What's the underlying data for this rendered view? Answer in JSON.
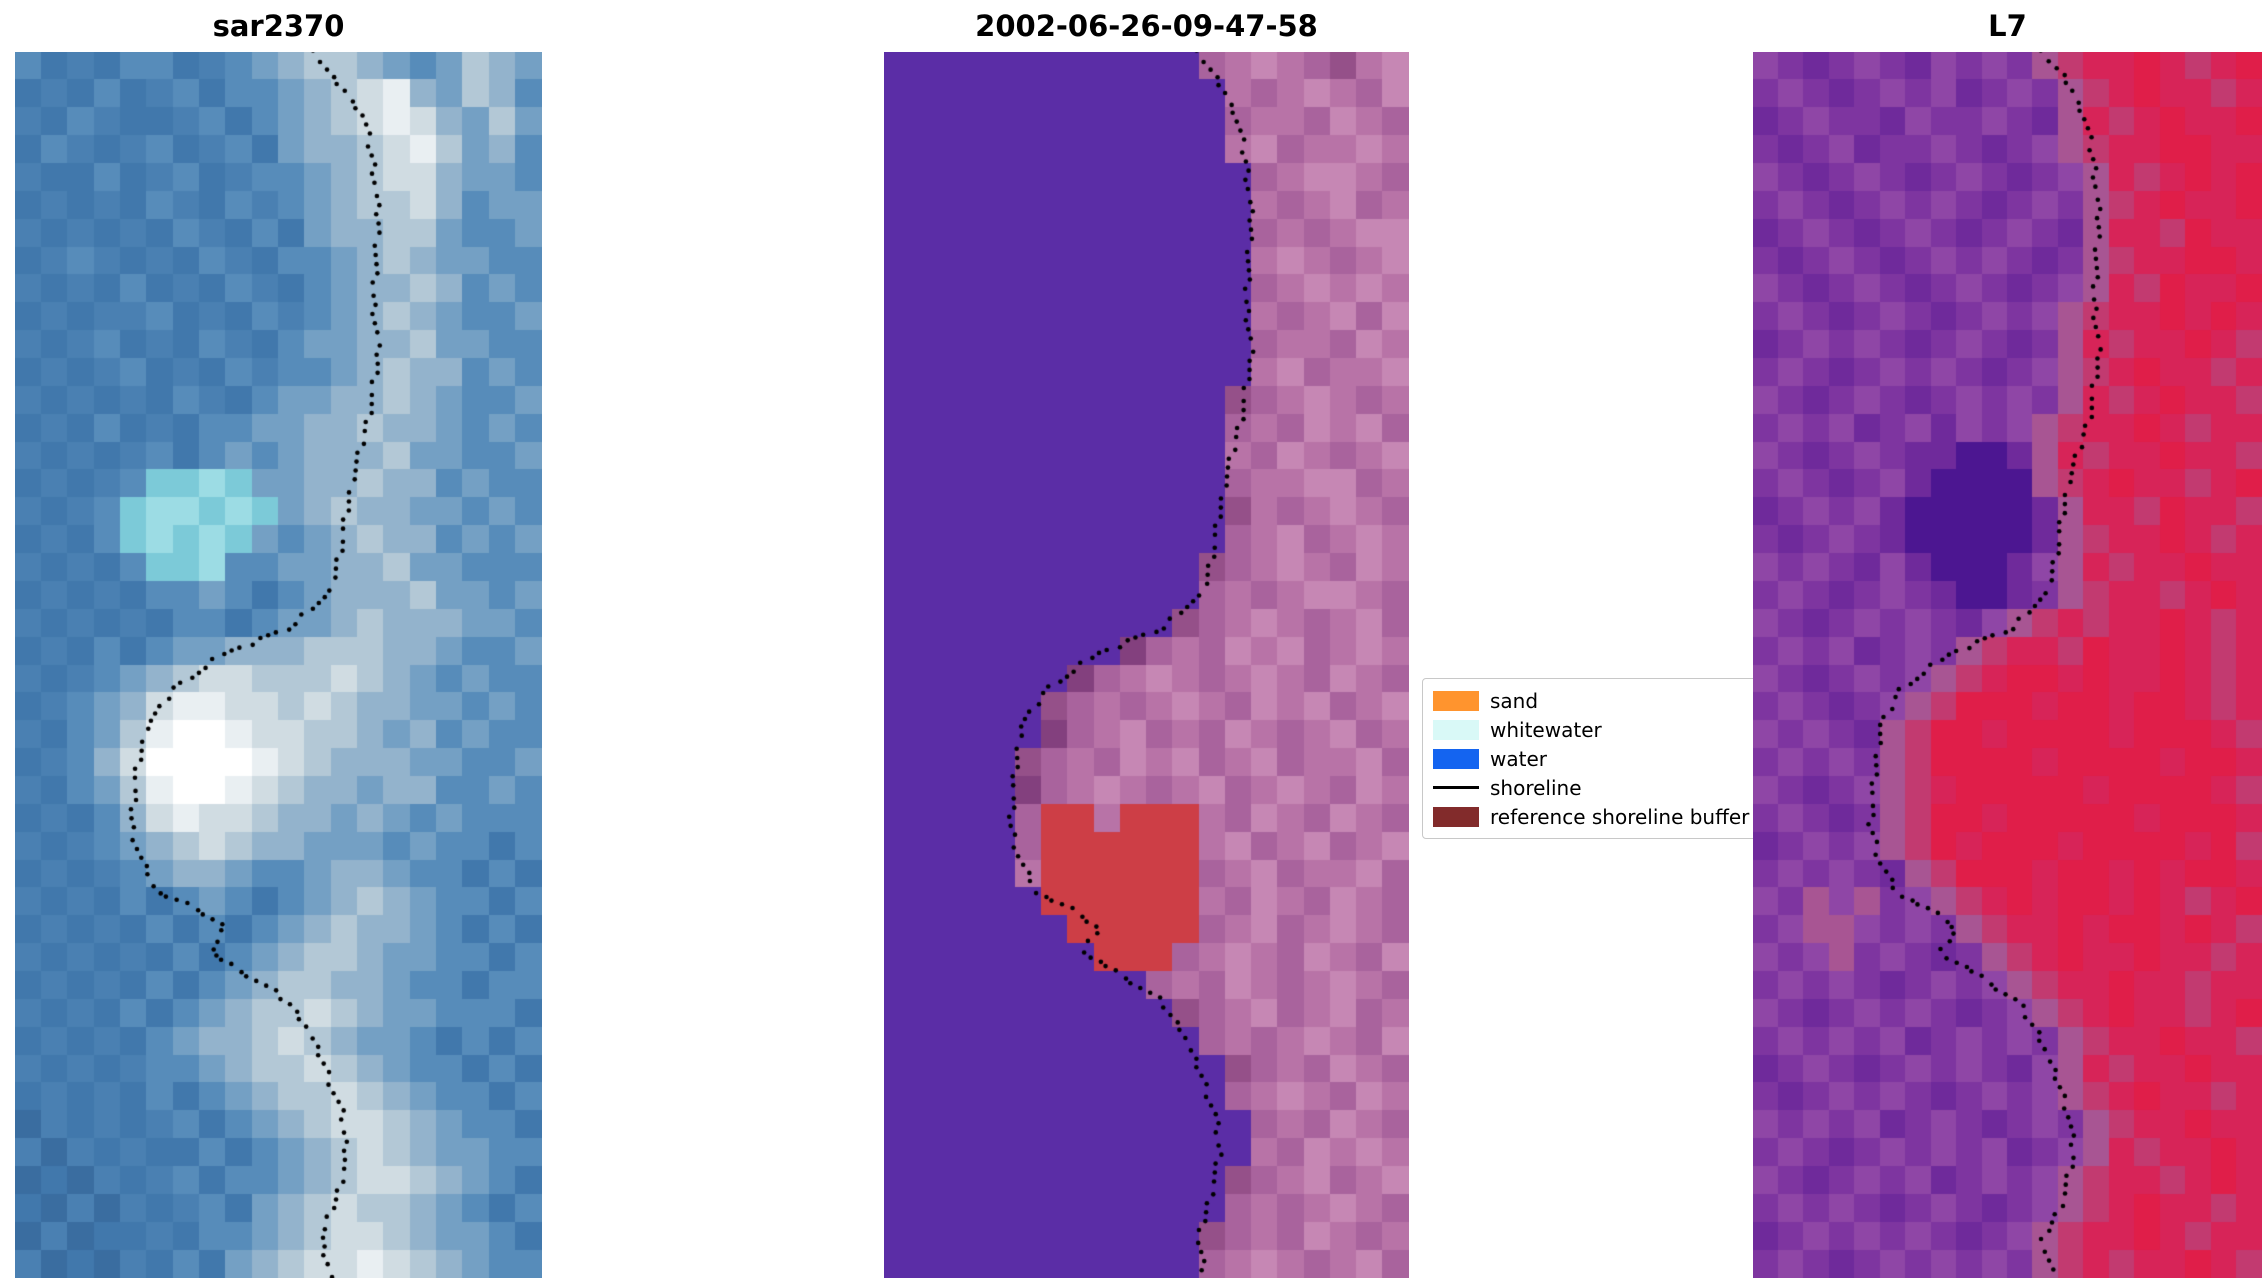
{
  "figure": {
    "background": "#ffffff",
    "panels": [
      {
        "title": "sar2370",
        "cols": 20,
        "rows": 44,
        "palette": {
          "a": "#4a80b2",
          "b": "#4178ac",
          "c": "#578cba",
          "d": "#74a0c4",
          "e": "#93b3cc",
          "f": "#b3c8d6",
          "g": "#d0dce2",
          "h": "#e9eff2",
          "i": "#ffffff",
          "j": "#7ccad8",
          "k": "#9cdce4",
          "m": "#3a6da0"
        },
        "grid": [
          "cbabccbacdeffedcdfed",
          "babcbacbccdefghedfec",
          "abcabbacbcdefghgedfd",
          "bcabacbacbdeefghfdec",
          "abbcbacbaccdefggeddc",
          "bababcabcacdeffgecdd",
          "abababcabcbdeeffdccd",
          "bacababcabccdefeddcc",
          "ababcbabcabcdeefecdc",
          "babaacbabcacdefedccd",
          "abacbabcabcddeefddcc",
          "babacbabcaccdefeecdc",
          "abababcabcddeefedccd",
          "babcbabccddeefeedcdc",
          "ababacbcdcdeeefddccd",
          "babacjjkjddeefeecdcc",
          "abacjkkjkjdefeeddcdc",
          "babcjkjkjdcdefeecdcd",
          "ababcjjkccddeefddccc",
          "bababccdcbcdeeefddcd",
          "abababccbcddefeeeddc",
          "babcbcddeeefffeedccd",
          "abacdefggfffgfedcdcc",
          "bacdeghhggfgfeeddcdc",
          "abcdfhiihggffedecdcc",
          "bacegiiiihgfeeeddccd",
          "abcdfhiihgfeedeeccdc",
          "babceghggfeededcdccc",
          "abacdefgfeedddcdccbc",
          "babacdeedccdeedccbcb",
          "ababcbcdcbcdefedccbc",
          "bababcbcbcdefeedcbcb",
          "abababcbcdeffeddccbc",
          "bababcbcdeffeedccbcc",
          "ababcbcdeffgfeddcccb",
          "bababcdeefgfeddcbcbc",
          "ababaccdeffgfedccbcb",
          "bababcbcdeffgfedccbc",
          "mababacbcdefggfedccb",
          "amababbcbcdefgfeddcc",
          "mbmabacbccdefggfedcb",
          "bmamabacbdefgffedcbc",
          "mambbabccdefggfeddcb",
          "ambmabcbdefgghgfedcc"
        ],
        "shoreline": [
          [
            0.57,
            0.0
          ],
          [
            0.6,
            0.02
          ],
          [
            0.66,
            0.05
          ],
          [
            0.68,
            0.09
          ],
          [
            0.69,
            0.14
          ],
          [
            0.68,
            0.2
          ],
          [
            0.69,
            0.25
          ],
          [
            0.67,
            0.3
          ],
          [
            0.64,
            0.35
          ],
          [
            0.62,
            0.4
          ],
          [
            0.6,
            0.44
          ],
          [
            0.52,
            0.47
          ],
          [
            0.4,
            0.49
          ],
          [
            0.3,
            0.52
          ],
          [
            0.25,
            0.55
          ],
          [
            0.23,
            0.59
          ],
          [
            0.22,
            0.63
          ],
          [
            0.24,
            0.66
          ],
          [
            0.27,
            0.685
          ],
          [
            0.35,
            0.7
          ],
          [
            0.4,
            0.715
          ],
          [
            0.37,
            0.735
          ],
          [
            0.45,
            0.755
          ],
          [
            0.52,
            0.775
          ],
          [
            0.56,
            0.8
          ],
          [
            0.59,
            0.83
          ],
          [
            0.62,
            0.865
          ],
          [
            0.63,
            0.9
          ],
          [
            0.61,
            0.935
          ],
          [
            0.58,
            0.97
          ],
          [
            0.6,
            1.0
          ]
        ]
      },
      {
        "title": "2002-06-26-09-47-58",
        "cols": 20,
        "rows": 44,
        "palette": {
          "p": "#5b2da6",
          "q": "#a9639d",
          "r": "#b873a7",
          "s": "#c687b4",
          "t": "#955089",
          "u": "#cd3e46",
          "v": "#83407e"
        },
        "grid": [
          "ppppppppppppqrsrqtrs",
          "ppppppppppppprqrsrqs",
          "pppppppppppppqrrqsrq",
          "ppppppppppppprsqrrsr",
          "ppppppppppppppqrssrq",
          "pppppppppppppprqrsqr",
          "ppppppppppppppqrqrss",
          "pppppppppppppprsrqrs",
          "ppppppppppppppqrsrsr",
          "pppppppppppppprqrsqs",
          "ppppppppppppppqrrqsr",
          "pppppppppppppprsqrrs",
          "ppppppppppppptqrsrqr",
          "pppppppppppppqrqsrsq",
          "ppppppppppppprqsrqrs",
          "pppppppppppppqrrssqr",
          "ppppppppppppptrqrsrq",
          "pppppppppppppqrsqrsr",
          "pppppppppppptqrsrqsr",
          "ppppppppppppqrqrssrq",
          "ppppppppppptqrsrqrsq",
          "pppppppppvqrqsrsqrsr",
          "pppppppvqrsrqrsrqsrq",
          "pppppptqrqrsrqsrsqrs",
          "ppppppvqrsqrqsrqrsqr",
          "ppppptqrqsrsqrsqrrsq",
          "pppppvqrsrqrsqrsrqsr",
          "pppppquuruuurqsrqsrq",
          "pppppquuuuuursqrsqrs",
          "pppppruuuuuuqrsqrrsq",
          "ppppppuuuuuurqsrqsrq",
          "pppppppuuuuuqrsqrsrq",
          "ppppppppuuuqrsrqsrqs",
          "ppppppppppqrqsrqrsrq",
          "ppppppppppptqrsqrsqr",
          "ppppppppppppqrqrsrqs",
          "ppppppppppppptqrqsrq",
          "pppppppppppppqrsrqsr",
          "ppppppppppppppqrqsrq",
          "pppppppppppppprqsrsr",
          "ppppppppppppptqrsqrs",
          "pppppppppppppqrqrsrq",
          "pppppppppppptqrqsrqr",
          "ppppppppppppqrsrqrsq"
        ],
        "shoreline": [
          [
            0.6,
            0.0
          ],
          [
            0.63,
            0.02
          ],
          [
            0.67,
            0.05
          ],
          [
            0.69,
            0.09
          ],
          [
            0.7,
            0.14
          ],
          [
            0.69,
            0.2
          ],
          [
            0.7,
            0.25
          ],
          [
            0.68,
            0.3
          ],
          [
            0.65,
            0.35
          ],
          [
            0.63,
            0.4
          ],
          [
            0.61,
            0.44
          ],
          [
            0.53,
            0.47
          ],
          [
            0.41,
            0.49
          ],
          [
            0.31,
            0.52
          ],
          [
            0.26,
            0.55
          ],
          [
            0.25,
            0.59
          ],
          [
            0.24,
            0.63
          ],
          [
            0.26,
            0.66
          ],
          [
            0.29,
            0.685
          ],
          [
            0.36,
            0.7
          ],
          [
            0.41,
            0.715
          ],
          [
            0.38,
            0.735
          ],
          [
            0.46,
            0.755
          ],
          [
            0.53,
            0.775
          ],
          [
            0.57,
            0.8
          ],
          [
            0.6,
            0.83
          ],
          [
            0.63,
            0.865
          ],
          [
            0.64,
            0.9
          ],
          [
            0.62,
            0.935
          ],
          [
            0.6,
            0.97
          ],
          [
            0.61,
            1.0
          ]
        ]
      },
      {
        "title": "L7",
        "cols": 20,
        "rows": 44,
        "palette": {
          "P": "#7e35a0",
          "Q": "#8f46a6",
          "R": "#6f2a9b",
          "S": "#4c1691",
          "T": "#a85593",
          "U": "#c23a70",
          "V": "#d72458",
          "W": "#e01e49"
        },
        "grid": [
          "QPRPQPRQPQPTUVVWVUVW",
          "PQPRPQPQRPQPTUVWVVUV",
          "RPQPPRQPPQPRTVUVWVVW",
          "PRPQRPPQPRPQTUVVWWVV",
          "QPRPQPRPQPRPQTVUVWVW",
          "PQPRPQPQPRPQPTUVWVVW",
          "RPQPRPQPRPQPRTVVUWVV",
          "PRPQPRPQPQPRPTUVVWWV",
          "QPRPQPRPQPRPQTVUWVVW",
          "PQPRPQPRPQPQTUVVWVWV",
          "RPQPQPRPQPRPTVUVVWVU",
          "PQPRPQPQPRPQTUVWVVUV",
          "QPRPQPRPQPQPTVUVWVVU",
          "PQPQRPQRQPQTUVVWVUVV",
          "QPRPQPRRSSRTVUVVWVVU",
          "PQPRPQRSSSSTUVWVVUVW",
          "RPQPQRSSSSSRTVVUWVVU",
          "PRPQPRSSSSSRTUVVWVUV",
          "QPQPRQRSSSRQTVUVVWVV",
          "PQPRPQPRSSRPTUVVUVWV",
          "QPRPQPQPRQTUVUVVWVUV",
          "PQPQRPQPTUVVUWVVWVUV",
          "QPRPQPQTUVWWVWVVWVUV",
          "PQPRPQTUWWWVWWVWWVUV",
          "QPQPRTUWWVWWWWVWWWVU",
          "PQPQPTUWWWWVWWWWVWWV",
          "QPRPQTUVWWWWWVWWWWVU",
          "PQPRPTUWWVWWWWWVWWWV",
          "RPQPQTUWVWWWVWWWWVWU",
          "PQPQPRTUWWWVWWVWVWWV",
          "QPTQTPQTUVWVWWVWVUVW",
          "PQTTQPQPTUVVWVWWVWVU",
          "QPQTPQPRPTUVWVVWVVUV",
          "PQPQPRPQPQTUVVWVVUVV",
          "QPRPQPQPRPQTUVWVVUVW",
          "PQPQPQRPQPQPTUVVWVVU",
          "RPQPRPQPQPRQTVUVVWVV",
          "PRPQPQPRPQPQTUVWVVUV",
          "QPQPQRPQPRPQPTUVVWVV",
          "PQPRPQPQPQRPQTVUVVWV",
          "QPRPQPQRPQPQTUVVUVWV",
          "PQPQPRPQPRPQTUVWVVUV",
          "RPQPQPQPRPQTUVVWVUVV",
          "PQPRPQPQPQPTUVUVVWVU"
        ],
        "shoreline": [
          [
            0.57,
            0.0
          ],
          [
            0.61,
            0.02
          ],
          [
            0.65,
            0.05
          ],
          [
            0.67,
            0.09
          ],
          [
            0.68,
            0.14
          ],
          [
            0.67,
            0.2
          ],
          [
            0.68,
            0.25
          ],
          [
            0.66,
            0.3
          ],
          [
            0.62,
            0.35
          ],
          [
            0.6,
            0.4
          ],
          [
            0.58,
            0.44
          ],
          [
            0.51,
            0.47
          ],
          [
            0.39,
            0.49
          ],
          [
            0.29,
            0.52
          ],
          [
            0.25,
            0.55
          ],
          [
            0.24,
            0.59
          ],
          [
            0.23,
            0.63
          ],
          [
            0.25,
            0.66
          ],
          [
            0.28,
            0.685
          ],
          [
            0.35,
            0.7
          ],
          [
            0.4,
            0.715
          ],
          [
            0.37,
            0.735
          ],
          [
            0.45,
            0.755
          ],
          [
            0.52,
            0.775
          ],
          [
            0.56,
            0.8
          ],
          [
            0.59,
            0.83
          ],
          [
            0.62,
            0.865
          ],
          [
            0.63,
            0.9
          ],
          [
            0.61,
            0.935
          ],
          [
            0.57,
            0.97
          ],
          [
            0.59,
            1.0
          ]
        ]
      }
    ],
    "legend": {
      "shoreline_color": "#000000",
      "entries": [
        {
          "label": "sand",
          "type": "patch",
          "color": "#ff942e"
        },
        {
          "label": "whitewater",
          "type": "patch",
          "color": "#d9f9f7"
        },
        {
          "label": "water",
          "type": "patch",
          "color": "#1464f0"
        },
        {
          "label": "shoreline",
          "type": "line",
          "color": "#000000"
        },
        {
          "label": "reference shoreline buffer",
          "type": "patch",
          "color": "#822b2b"
        }
      ]
    }
  }
}
